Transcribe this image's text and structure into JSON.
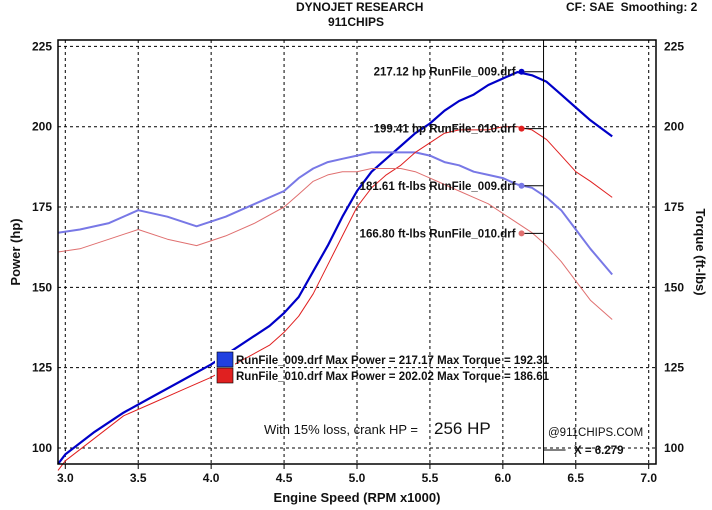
{
  "header": {
    "title": "DYNOJET RESEARCH",
    "subtitle": "911CHIPS",
    "correction": "CF: SAE  Smoothing: 2"
  },
  "chart_data": {
    "type": "line",
    "xlabel": "Engine Speed (RPM x1000)",
    "ylabel_left": "Power (hp)",
    "ylabel_right": "Torque (ft-lbs)",
    "xlim": [
      2.95,
      7.05
    ],
    "ylim_left": [
      95,
      227
    ],
    "ylim_right": [
      95,
      227
    ],
    "x_ticks": [
      "3.0",
      "3.5",
      "4.0",
      "4.5",
      "5.0",
      "5.5",
      "6.0",
      "6.5",
      "7.0"
    ],
    "y_ticks_left": [
      "100",
      "125",
      "150",
      "175",
      "200",
      "225"
    ],
    "y_ticks_right": [
      "100",
      "125",
      "150",
      "175",
      "200",
      "225"
    ],
    "grid": true,
    "colors": {
      "run009_power": "#0000c8",
      "run009_torque": "#7878e6",
      "run010_power": "#e02020",
      "run010_torque": "#e07070"
    },
    "series": [
      {
        "name": "RunFile_009.drf",
        "kind": "power",
        "unit": "hp",
        "x": [
          2.95,
          3.0,
          3.2,
          3.4,
          3.6,
          3.8,
          4.0,
          4.2,
          4.4,
          4.5,
          4.6,
          4.7,
          4.8,
          4.9,
          5.0,
          5.1,
          5.2,
          5.3,
          5.4,
          5.5,
          5.6,
          5.7,
          5.8,
          5.9,
          6.0,
          6.1,
          6.2,
          6.3,
          6.4,
          6.5,
          6.6,
          6.75
        ],
        "y": [
          95,
          98,
          105,
          111,
          116,
          121,
          126,
          132,
          138,
          142,
          147,
          155,
          163,
          172,
          180,
          186,
          190,
          194,
          198,
          201,
          205,
          208,
          210,
          213,
          215,
          217,
          216,
          214,
          210,
          206,
          202,
          197
        ]
      },
      {
        "name": "RunFile_009.drf",
        "kind": "torque",
        "unit": "ft-lbs",
        "x": [
          2.95,
          3.1,
          3.3,
          3.5,
          3.7,
          3.9,
          4.1,
          4.3,
          4.5,
          4.6,
          4.7,
          4.8,
          4.9,
          5.0,
          5.1,
          5.2,
          5.3,
          5.4,
          5.5,
          5.6,
          5.7,
          5.8,
          5.9,
          6.0,
          6.1,
          6.2,
          6.3,
          6.4,
          6.5,
          6.6,
          6.75
        ],
        "y": [
          167,
          168,
          170,
          174,
          172,
          169,
          172,
          176,
          180,
          184,
          187,
          189,
          190,
          191,
          192,
          192,
          192,
          192,
          191,
          189,
          188,
          186,
          185,
          184,
          182,
          181,
          178,
          174,
          168,
          162,
          154
        ]
      },
      {
        "name": "RunFile_010.drf",
        "kind": "power",
        "unit": "hp",
        "x": [
          2.95,
          3.0,
          3.2,
          3.4,
          3.6,
          3.8,
          4.0,
          4.2,
          4.4,
          4.5,
          4.6,
          4.7,
          4.8,
          4.9,
          5.0,
          5.1,
          5.2,
          5.3,
          5.4,
          5.5,
          5.6,
          5.7,
          5.8,
          5.9,
          6.0,
          6.1,
          6.2,
          6.3,
          6.4,
          6.5,
          6.6,
          6.75
        ],
        "y": [
          93,
          96,
          103,
          110,
          114,
          118,
          122,
          127,
          132,
          136,
          141,
          148,
          157,
          166,
          175,
          181,
          185,
          188,
          192,
          195,
          198,
          199,
          199,
          199,
          200,
          200,
          199,
          196,
          191,
          186,
          183,
          178
        ]
      },
      {
        "name": "RunFile_010.drf",
        "kind": "torque",
        "unit": "ft-lbs",
        "x": [
          2.95,
          3.1,
          3.3,
          3.5,
          3.7,
          3.9,
          4.1,
          4.3,
          4.5,
          4.6,
          4.7,
          4.8,
          4.9,
          5.0,
          5.1,
          5.2,
          5.3,
          5.4,
          5.5,
          5.6,
          5.7,
          5.8,
          5.9,
          6.0,
          6.1,
          6.2,
          6.3,
          6.4,
          6.5,
          6.6,
          6.75
        ],
        "y": [
          161,
          162,
          165,
          168,
          165,
          163,
          166,
          170,
          175,
          179,
          183,
          185,
          186,
          186,
          187,
          187,
          187,
          186,
          184,
          182,
          180,
          178,
          176,
          173,
          170,
          167,
          163,
          158,
          152,
          146,
          140
        ]
      }
    ],
    "cursor": {
      "x": 6.279,
      "label": "X = 6.279"
    },
    "cursor_readouts": [
      {
        "value": "217.12",
        "unit": "hp",
        "file": "RunFile_009.drf",
        "y": 217.12,
        "color": "#0000c8"
      },
      {
        "value": "199.41",
        "unit": "hp",
        "file": "RunFile_010.drf",
        "y": 199.41,
        "color": "#e02020"
      },
      {
        "value": "181.61",
        "unit": "ft-lbs",
        "file": "RunFile_009.drf",
        "y": 181.61,
        "color": "#7878e6"
      },
      {
        "value": "166.80",
        "unit": "ft-lbs",
        "file": "RunFile_010.drf",
        "y": 166.8,
        "color": "#e07070"
      }
    ],
    "legend": {
      "placement": "lower-left",
      "entries": [
        {
          "file": "RunFile_009.drf",
          "max_power_label": "Max Power =",
          "max_power": "217.17",
          "max_torque_label": "Max Torque =",
          "max_torque": "192.31",
          "color": "#2040e0"
        },
        {
          "file": "RunFile_010.drf",
          "max_power_label": "Max Power =",
          "max_power": "202.02",
          "max_torque_label": "Max Torque =",
          "max_torque": "186.61",
          "color": "#e02020"
        }
      ]
    },
    "annotations": {
      "loss_text": "With 15% loss, crank HP =",
      "loss_value": "256 HP",
      "watermark": "@911CHIPS.COM"
    }
  }
}
